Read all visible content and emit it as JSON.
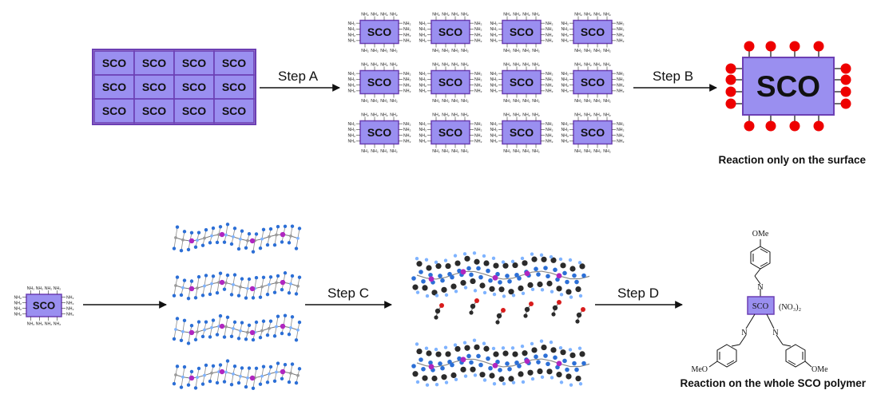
{
  "colors": {
    "sco_fill": "#9a8ff0",
    "sco_stroke": "#6c3fb4",
    "surface_dot": "#ee0000",
    "atom_black": "#2b2b2b",
    "atom_blue": "#2c6fd6",
    "atom_purple": "#b026c0",
    "atom_red": "#d81c1c",
    "atom_light_blue": "#7fb3ff"
  },
  "top_row": {
    "bulk_block": {
      "cell_label": "SCO",
      "rows": 3,
      "cols": 4
    },
    "step_a_label": "Step A",
    "nanoparticles": {
      "label": "SCO",
      "amine_label": "NH₂",
      "rows": 3,
      "cols": 4
    },
    "step_b_label": "Step B",
    "surface_particle": {
      "label": "SCO"
    },
    "caption": "Reaction only on the surface"
  },
  "bottom_row": {
    "single_particle": {
      "label": "SCO",
      "amine_label": "NH₂"
    },
    "step_c_label": "Step C",
    "step_d_label": "Step D",
    "product": {
      "label": "SCO",
      "counter_ion": "(NO₃)₂",
      "top_group": "OMe",
      "left_group": "MeO",
      "right_group": "OMe",
      "imine_n": "N"
    },
    "caption": "Reaction on the whole SCO polymer"
  }
}
